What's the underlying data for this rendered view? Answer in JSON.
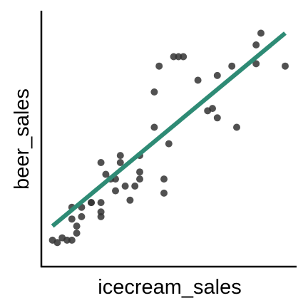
{
  "chart_data": {
    "type": "scatter",
    "xlabel": "icecream_sales",
    "ylabel": "beer_sales",
    "xlim": [
      0,
      100
    ],
    "ylim": [
      0,
      100
    ],
    "grid": false,
    "legend": "none",
    "colors": {
      "points": "#333333",
      "fit": "#2e8b75"
    },
    "series": [
      {
        "x": [
          4,
          6,
          8,
          10,
          12,
          14,
          14,
          12,
          12,
          16,
          16,
          20,
          20,
          24,
          24,
          24,
          24,
          26,
          28,
          30,
          30,
          32,
          32,
          34,
          36,
          38,
          40,
          40,
          40,
          46,
          46,
          48,
          50,
          50,
          52,
          54,
          56,
          58,
          64,
          68,
          70,
          72,
          72,
          78,
          80,
          88,
          88,
          90,
          100
        ],
        "y": [
          7,
          6,
          8,
          7,
          7,
          10,
          13,
          16,
          21,
          21,
          17,
          23,
          23,
          23,
          19,
          17,
          40,
          35,
          33,
          33,
          28,
          40,
          43,
          30,
          24,
          30,
          33,
          36,
          43,
          55,
          70,
          81,
          33,
          27,
          48,
          85,
          85,
          85,
          75,
          62,
          63,
          59,
          77,
          81,
          55,
          82,
          90,
          95,
          81
        ]
      }
    ],
    "fit_line": {
      "x": [
        4,
        100
      ],
      "y": [
        13,
        95
      ]
    }
  }
}
